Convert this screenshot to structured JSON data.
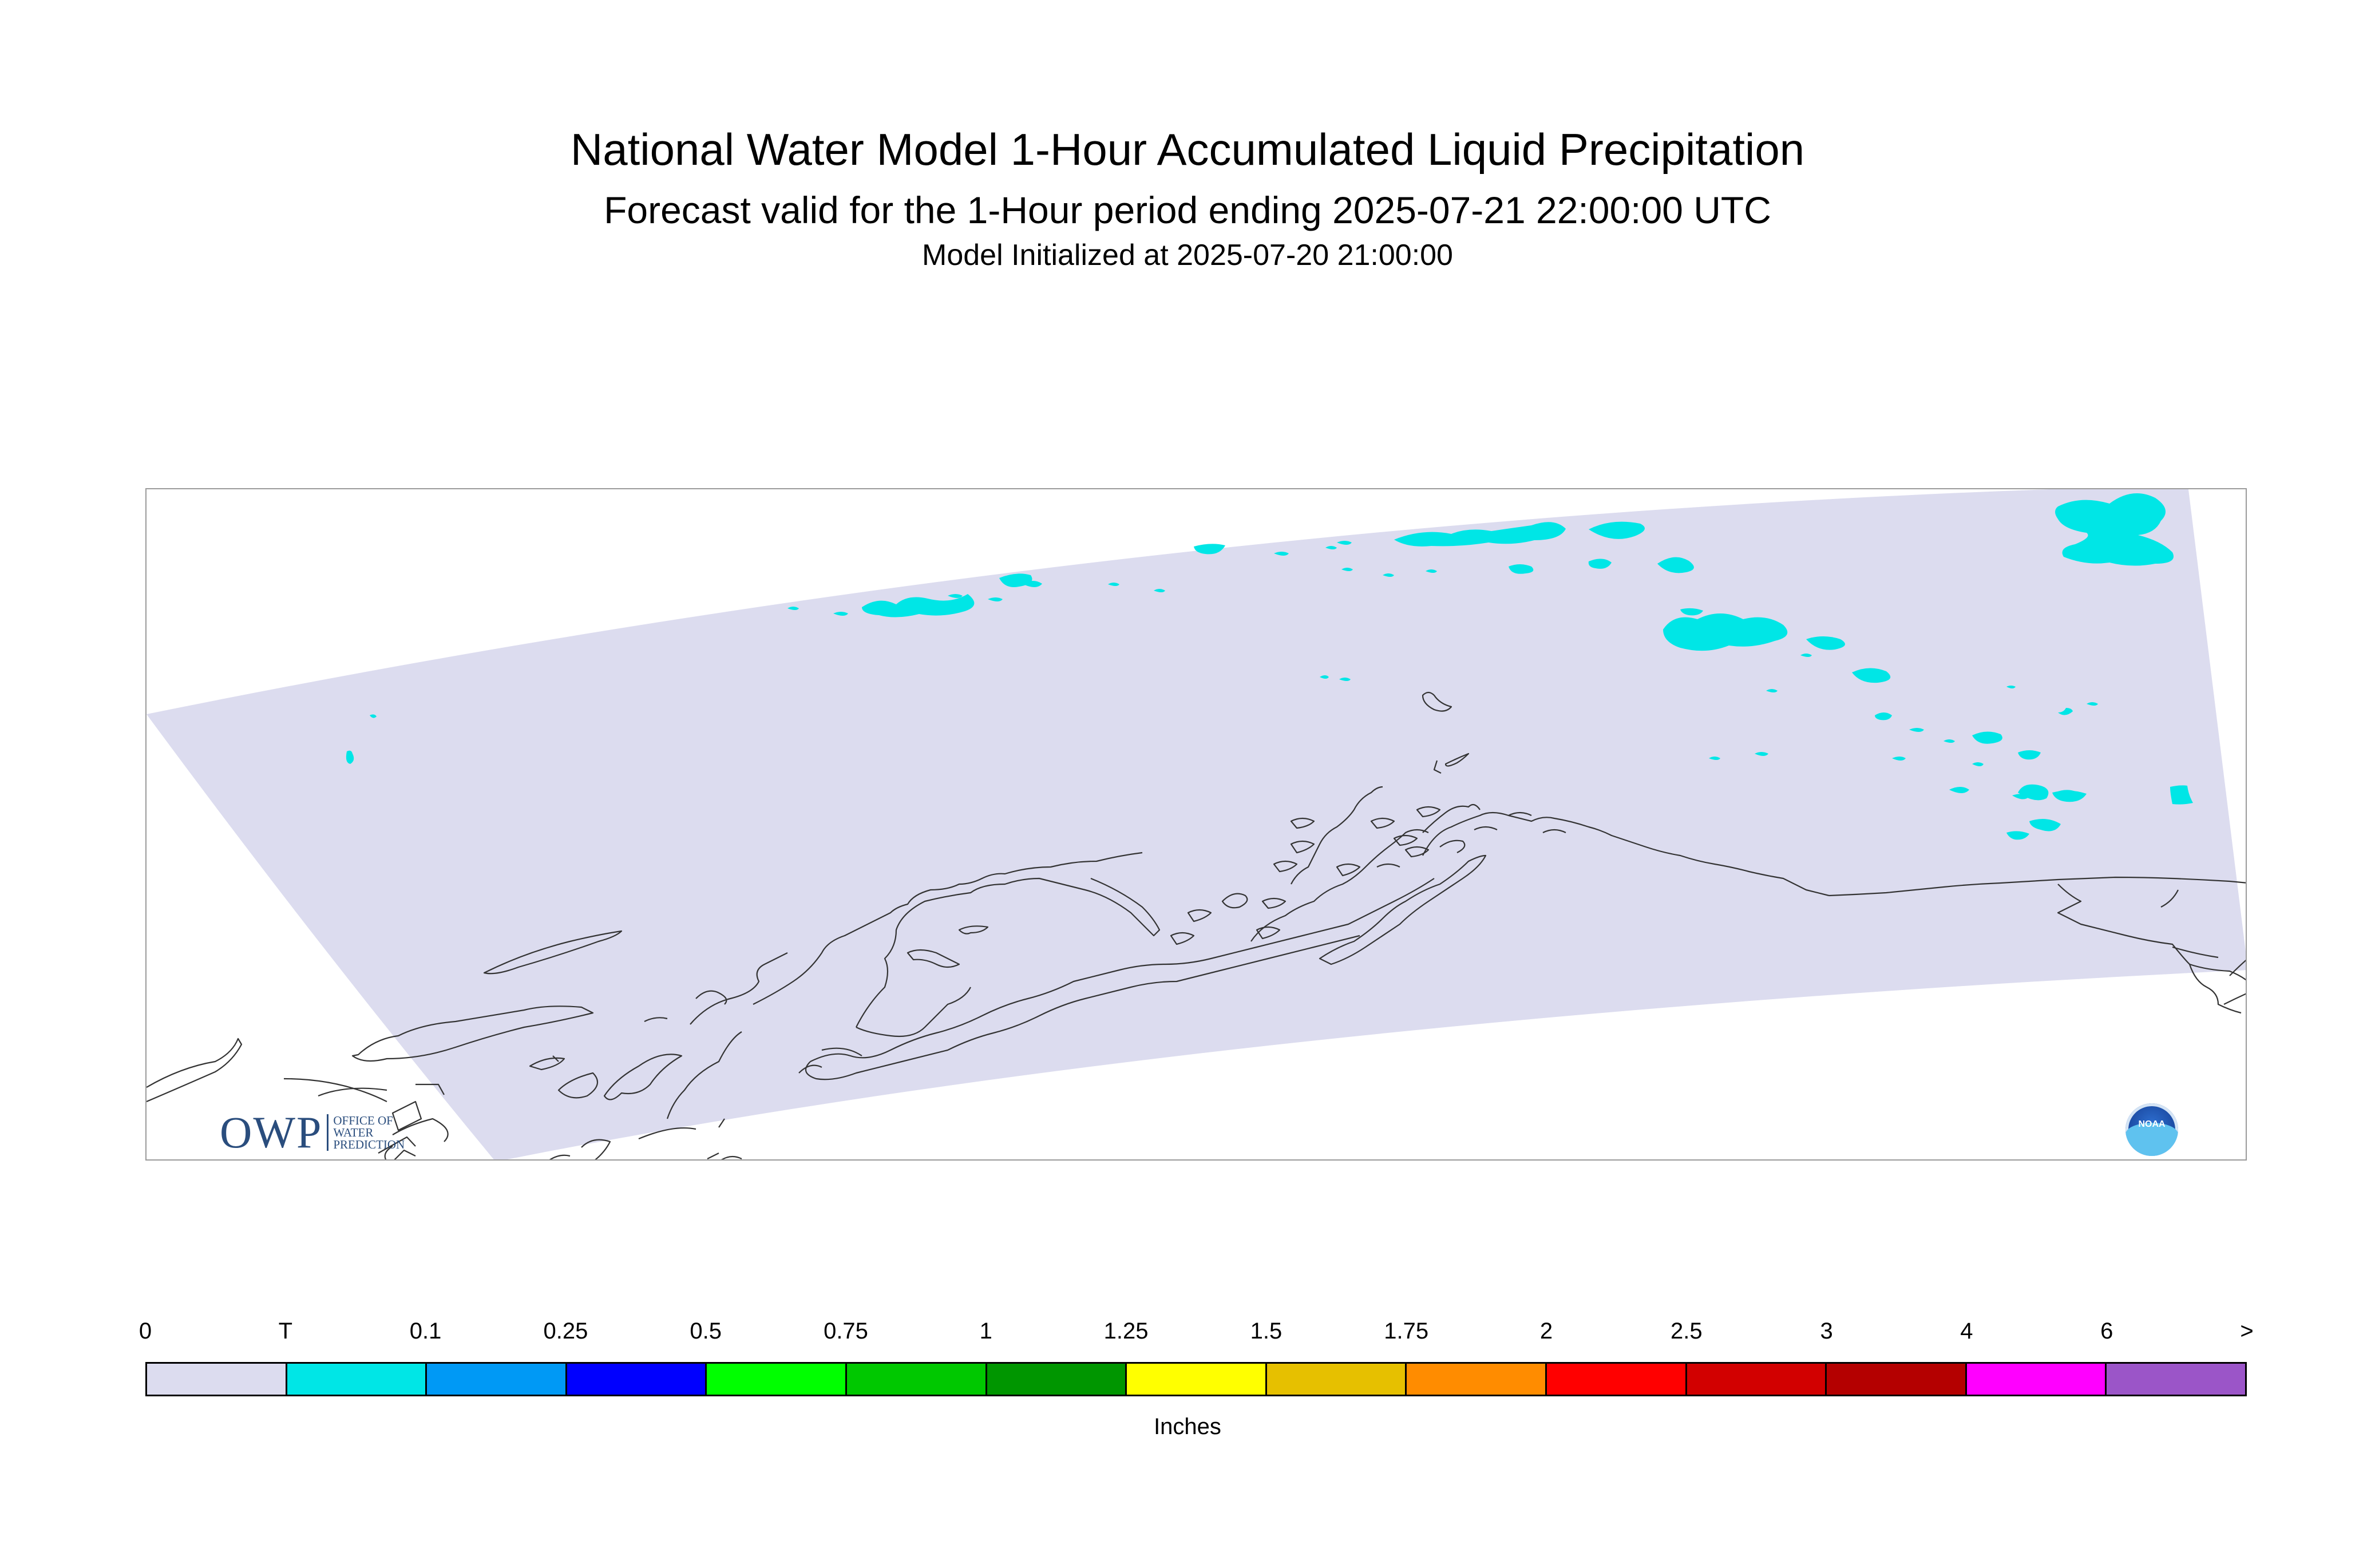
{
  "header": {
    "title": "National Water Model 1-Hour Accumulated Liquid Precipitation",
    "subtitle": "Forecast valid for the 1-Hour period ending 2025-07-21 22:00:00 UTC",
    "init_line": "Model Initialized at 2025-07-20 21:00:00"
  },
  "map": {
    "domain_fill_color": "#dcdcef",
    "precip_color": "#00e6e6",
    "coastline_color": "#333333"
  },
  "logos": {
    "owp": {
      "letters": "OWP",
      "line1": "OFFICE OF",
      "line2": "WATER",
      "line3": "PREDICTION"
    },
    "noaa": {
      "word": "NOAA"
    }
  },
  "legend": {
    "labels": [
      "0",
      "T",
      "0.1",
      "0.25",
      "0.5",
      "0.75",
      "1",
      "1.25",
      "1.5",
      "1.75",
      "2",
      "2.5",
      "3",
      "4",
      "6",
      ">"
    ],
    "colors": [
      "#dcdcef",
      "#00e6e6",
      "#0099f5",
      "#0000ff",
      "#00ff00",
      "#00c800",
      "#009600",
      "#ffff00",
      "#e6c000",
      "#ff8c00",
      "#ff0000",
      "#d20000",
      "#b40000",
      "#ff00ff",
      "#9b55c8"
    ],
    "unit": "Inches"
  }
}
